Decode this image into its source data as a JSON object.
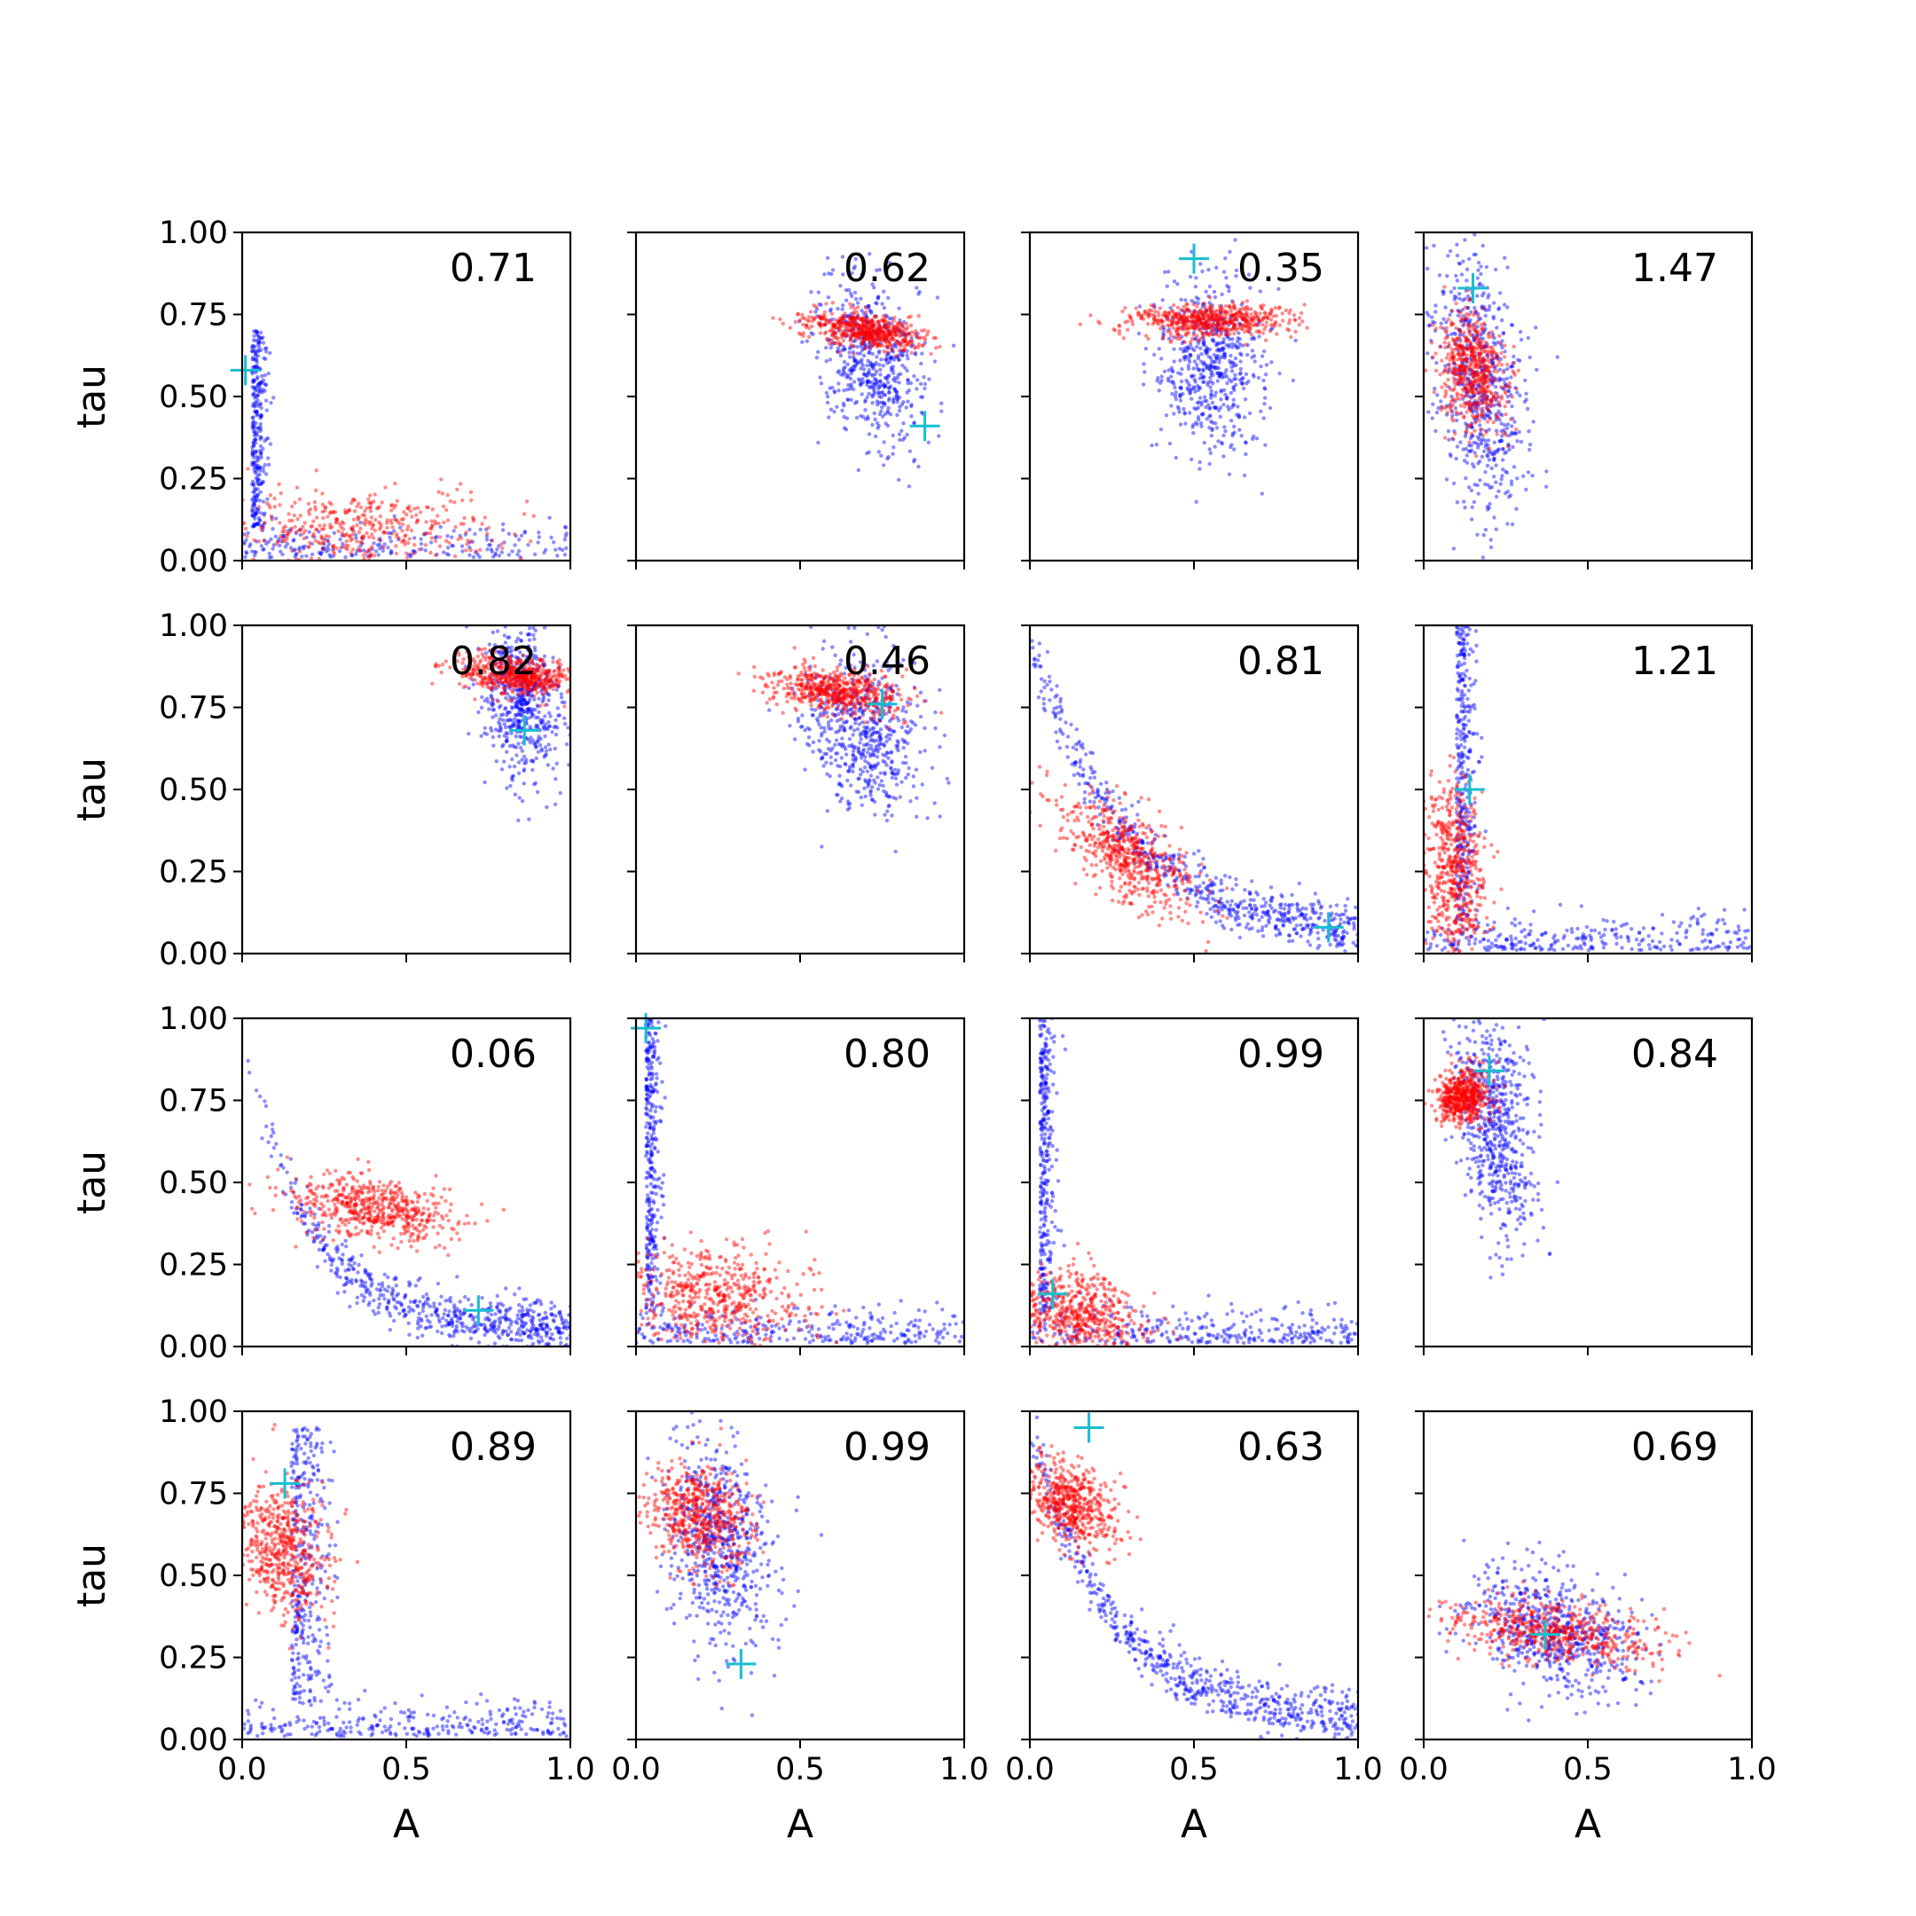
{
  "chart_data": {
    "type": "scatter",
    "grid_rows": 4,
    "grid_cols": 4,
    "xlabel": "A",
    "ylabel": "tau",
    "xlim": [
      0.0,
      1.0
    ],
    "ylim": [
      0.0,
      1.0
    ],
    "xticks": [
      "0.0",
      "0.5",
      "1.0"
    ],
    "yticks": [
      "0.00",
      "0.25",
      "0.50",
      "0.75",
      "1.00"
    ],
    "grid": false,
    "colors": {
      "series_a": "#0000ff",
      "series_b": "#ff0000",
      "marker": "#17becf"
    },
    "panels": [
      {
        "label": "0.71",
        "marker": [
          0.01,
          0.58
        ],
        "blue": {
          "type": "L",
          "cx": 0.03,
          "cy": 0.1,
          "sx": 0.03,
          "sy": 0.3,
          "spread": 0.6,
          "n": 520
        },
        "red": {
          "cx": 0.35,
          "cy": 0.1,
          "sx": 0.22,
          "sy": 0.06,
          "rho": 0.0,
          "n": 420,
          "xmax": 0.9
        }
      },
      {
        "label": "0.62",
        "marker": [
          0.88,
          0.41
        ],
        "blue": {
          "cx": 0.72,
          "cy": 0.6,
          "sx": 0.08,
          "sy": 0.13,
          "rho": -0.3,
          "n": 560
        },
        "red": {
          "cx": 0.7,
          "cy": 0.7,
          "sx": 0.09,
          "sy": 0.03,
          "rho": -0.5,
          "n": 560
        }
      },
      {
        "label": "0.35",
        "marker": [
          0.5,
          0.92
        ],
        "blue": {
          "cx": 0.55,
          "cy": 0.6,
          "sx": 0.08,
          "sy": 0.14,
          "rho": 0.0,
          "n": 560
        },
        "red": {
          "cx": 0.55,
          "cy": 0.73,
          "sx": 0.12,
          "sy": 0.025,
          "rho": 0.0,
          "n": 560
        }
      },
      {
        "label": "1.47",
        "marker": [
          0.15,
          0.83
        ],
        "blue": {
          "cx": 0.17,
          "cy": 0.55,
          "sx": 0.07,
          "sy": 0.2,
          "rho": -0.3,
          "n": 620
        },
        "red": {
          "cx": 0.15,
          "cy": 0.58,
          "sx": 0.05,
          "sy": 0.09,
          "rho": -0.2,
          "n": 560
        }
      },
      {
        "label": "0.82",
        "marker": [
          0.86,
          0.68
        ],
        "blue": {
          "cx": 0.85,
          "cy": 0.78,
          "sx": 0.06,
          "sy": 0.12,
          "rho": -0.2,
          "n": 560
        },
        "red": {
          "cx": 0.83,
          "cy": 0.85,
          "sx": 0.09,
          "sy": 0.03,
          "rho": -0.3,
          "n": 560
        }
      },
      {
        "label": "0.46",
        "marker": [
          0.75,
          0.76
        ],
        "blue": {
          "cx": 0.7,
          "cy": 0.68,
          "sx": 0.09,
          "sy": 0.12,
          "rho": -0.2,
          "n": 560
        },
        "red": {
          "cx": 0.62,
          "cy": 0.8,
          "sx": 0.1,
          "sy": 0.035,
          "rho": -0.3,
          "n": 560
        }
      },
      {
        "label": "0.81",
        "marker": [
          0.91,
          0.08
        ],
        "blue": {
          "type": "decay",
          "n": 620
        },
        "red": {
          "cx": 0.3,
          "cy": 0.3,
          "sx": 0.1,
          "sy": 0.09,
          "rho": -0.6,
          "n": 560
        }
      },
      {
        "label": "1.21",
        "marker": [
          0.14,
          0.5
        ],
        "blue": {
          "type": "L",
          "cx": 0.1,
          "cy": 0.1,
          "sx": 0.04,
          "sy": 0.3,
          "spread": 0.9,
          "n": 620
        },
        "red": {
          "cx": 0.09,
          "cy": 0.25,
          "sx": 0.05,
          "sy": 0.14,
          "rho": -0.2,
          "n": 560
        }
      },
      {
        "label": "0.06",
        "marker": [
          0.72,
          0.11
        ],
        "blue": {
          "type": "decay2",
          "n": 620
        },
        "red": {
          "cx": 0.4,
          "cy": 0.42,
          "sx": 0.13,
          "sy": 0.05,
          "rho": -0.3,
          "n": 560
        }
      },
      {
        "label": "0.80",
        "marker": [
          0.03,
          0.97
        ],
        "blue": {
          "type": "L",
          "cx": 0.03,
          "cy": 0.05,
          "sx": 0.03,
          "sy": 0.35,
          "spread": 0.9,
          "n": 620
        },
        "red": {
          "cx": 0.25,
          "cy": 0.15,
          "sx": 0.14,
          "sy": 0.08,
          "rho": 0.0,
          "n": 560
        }
      },
      {
        "label": "0.99",
        "marker": [
          0.07,
          0.16
        ],
        "blue": {
          "type": "L",
          "cx": 0.03,
          "cy": 0.05,
          "sx": 0.03,
          "sy": 0.35,
          "spread": 0.9,
          "n": 620
        },
        "red": {
          "cx": 0.15,
          "cy": 0.1,
          "sx": 0.1,
          "sy": 0.07,
          "rho": -0.3,
          "n": 560
        }
      },
      {
        "label": "0.84",
        "marker": [
          0.2,
          0.84
        ],
        "blue": {
          "cx": 0.22,
          "cy": 0.68,
          "sx": 0.06,
          "sy": 0.18,
          "rho": -0.3,
          "n": 620
        },
        "red": {
          "cx": 0.12,
          "cy": 0.76,
          "sx": 0.04,
          "sy": 0.04,
          "rho": 0.0,
          "n": 560
        }
      },
      {
        "label": "0.89",
        "marker": [
          0.13,
          0.78
        ],
        "blue": {
          "type": "L",
          "cx": 0.15,
          "cy": 0.55,
          "sx": 0.08,
          "sy": 0.2,
          "spread": 0.85,
          "n": 620
        },
        "red": {
          "cx": 0.12,
          "cy": 0.58,
          "sx": 0.07,
          "sy": 0.1,
          "rho": -0.2,
          "n": 560
        }
      },
      {
        "label": "0.99",
        "marker": [
          0.32,
          0.23
        ],
        "blue": {
          "cx": 0.26,
          "cy": 0.6,
          "sx": 0.08,
          "sy": 0.16,
          "rho": -0.2,
          "n": 620
        },
        "red": {
          "cx": 0.2,
          "cy": 0.68,
          "sx": 0.08,
          "sy": 0.08,
          "rho": -0.2,
          "n": 560
        }
      },
      {
        "label": "0.63",
        "marker": [
          0.18,
          0.95
        ],
        "blue": {
          "type": "decay3",
          "n": 620
        },
        "red": {
          "cx": 0.12,
          "cy": 0.72,
          "sx": 0.07,
          "sy": 0.07,
          "rho": -0.4,
          "n": 560
        }
      },
      {
        "label": "0.69",
        "marker": [
          0.37,
          0.32
        ],
        "blue": {
          "cx": 0.4,
          "cy": 0.33,
          "sx": 0.13,
          "sy": 0.1,
          "rho": -0.4,
          "n": 620
        },
        "red": {
          "cx": 0.4,
          "cy": 0.33,
          "sx": 0.16,
          "sy": 0.05,
          "rho": -0.4,
          "n": 560
        }
      }
    ]
  }
}
